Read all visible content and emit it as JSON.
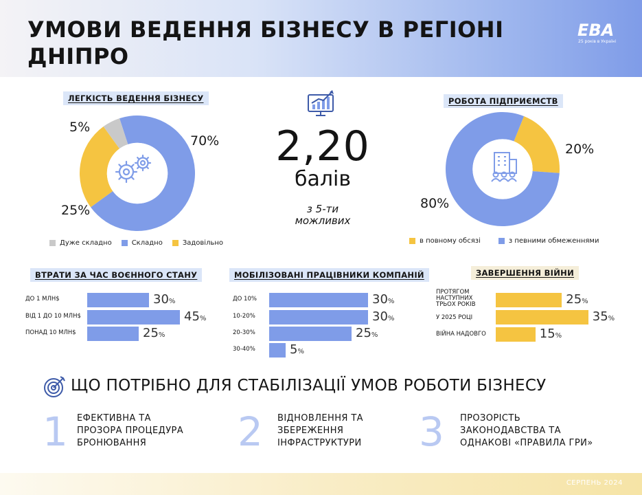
{
  "title_line1": "УМОВИ ВЕДЕННЯ БІЗНЕСУ В РЕГІОНІ",
  "title_line2": "ДНІПРО",
  "logo": {
    "text": "EBA",
    "sub": "25 років в Україні"
  },
  "colors": {
    "blue": "#7f9ce8",
    "yellow": "#f5c441",
    "gray": "#c9c9c9",
    "light_blue": "#b9c9f2"
  },
  "score": {
    "value": "2,20",
    "unit": "балів",
    "of_line1": "з 5-ти",
    "of_line2": "можливих",
    "icon": "growth-chart-icon"
  },
  "stabilization": {
    "title": "ЩО ПОТРІБНО ДЛЯ СТАБІЛІЗАЦІЇ УМОВ РОБОТИ БІЗНЕСУ",
    "icon": "target-icon",
    "steps": [
      {
        "num": "1",
        "line1": "ЕФЕКТИВНА ТА",
        "line2": "ПРОЗОРА ПРОЦЕДУРА",
        "line3": "БРОНЮВАННЯ"
      },
      {
        "num": "2",
        "line1": "ВІДНОВЛЕННЯ ТА",
        "line2": "ЗБЕРЕЖЕННЯ",
        "line3": "ІНФРАСТРУКТУРИ"
      },
      {
        "num": "3",
        "line1": "ПРОЗОРІСТЬ",
        "line2": "ЗАКОНОДАВСТВА ТА",
        "line3": "ОДНАКОВІ «ПРАВИЛА ГРИ»"
      }
    ]
  },
  "footer_date": "СЕРПЕНЬ 2024",
  "chart_data": [
    {
      "type": "pie",
      "title": "ЛЕГКІСТЬ ВЕДЕННЯ БІЗНЕСУ",
      "icon": "gears-icon",
      "slices": [
        {
          "name": "Дуже складно",
          "value": 5,
          "label": "5%",
          "color": "#c9c9c9"
        },
        {
          "name": "Складно",
          "value": 70,
          "label": "70%",
          "color": "#7f9ce8"
        },
        {
          "name": "Задовільно",
          "value": 25,
          "label": "25%",
          "color": "#f5c441"
        }
      ]
    },
    {
      "type": "pie",
      "title": "РОБОТА ПІДПРИЄМСТВ",
      "icon": "office-building-icon",
      "slices": [
        {
          "name": "в повному обсязі",
          "value": 20,
          "label": "20%",
          "color": "#f5c441"
        },
        {
          "name": "з певними обмеженнями",
          "value": 80,
          "label": "80%",
          "color": "#7f9ce8"
        }
      ]
    },
    {
      "type": "bar",
      "title": "ВТРАТИ ЗА ЧАС ВОЄННОГО СТАНУ",
      "categories": [
        "ДО 1 МЛН$",
        "ВІД 1 ДО 10 МЛН$",
        "ПОНАД 10 МЛН$"
      ],
      "values": [
        30,
        45,
        25
      ],
      "unit": "%"
    },
    {
      "type": "bar",
      "title": "МОБІЛІЗОВАНІ ПРАЦІВНИКИ КОМПАНІЙ",
      "categories": [
        "ДО 10%",
        "10-20%",
        "20-30%",
        "30-40%"
      ],
      "values": [
        30,
        30,
        25,
        5
      ],
      "unit": "%"
    },
    {
      "type": "bar",
      "title": "ЗАВЕРШЕННЯ ВІЙНИ",
      "categories": [
        "ПРОТЯГОМ НАСТУПНИХ ТРЬОХ РОКІВ",
        "У 2025 РОЦІ",
        "ВІЙНА НАДОВГО"
      ],
      "values": [
        25,
        35,
        15
      ],
      "unit": "%"
    }
  ]
}
